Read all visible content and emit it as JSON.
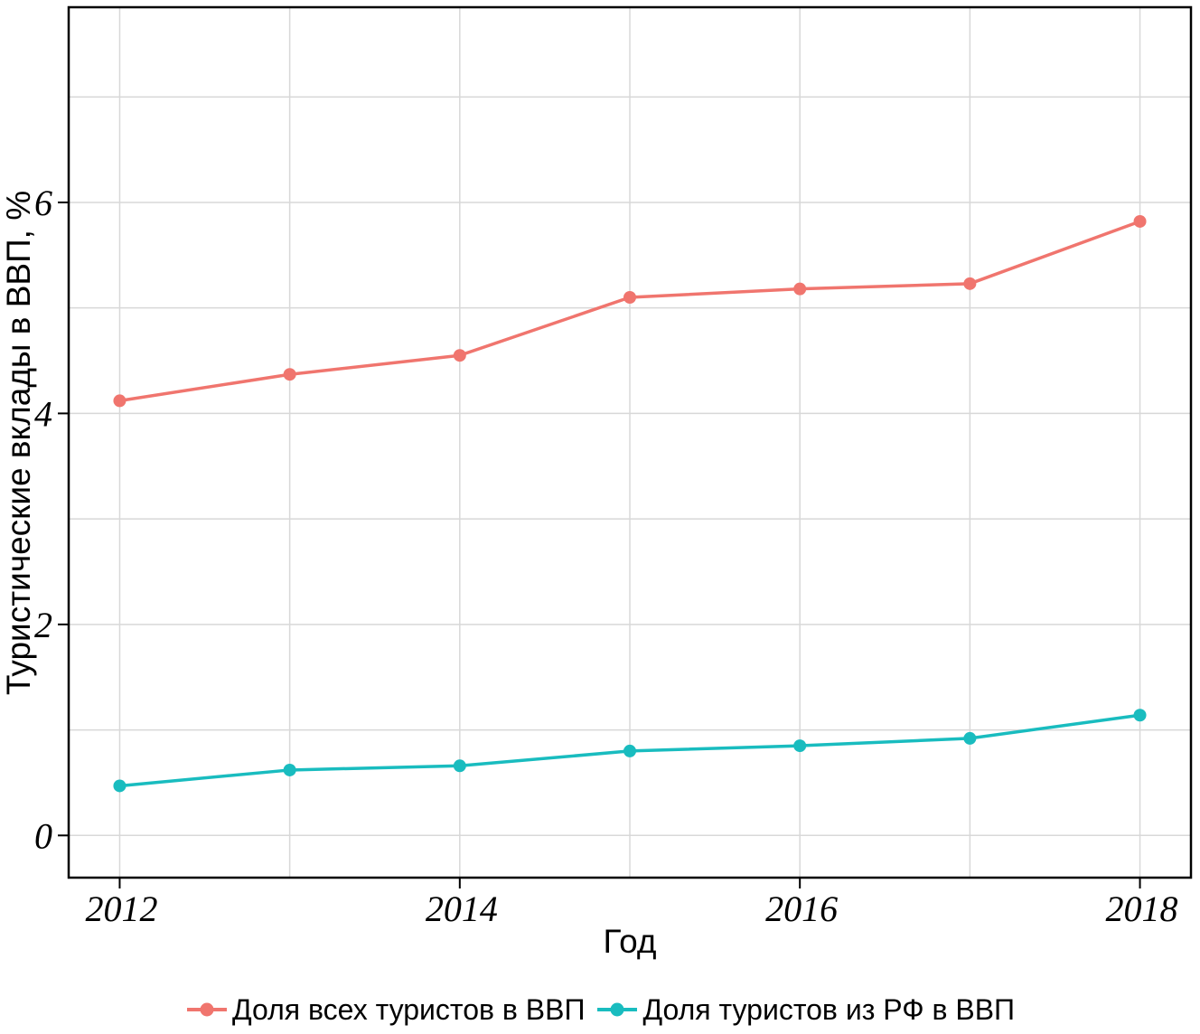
{
  "chart_data": {
    "type": "line",
    "x": [
      2012,
      2013,
      2014,
      2015,
      2016,
      2017,
      2018
    ],
    "series": [
      {
        "name": "Доля всех туристов в ВВП",
        "color": "#F0756E",
        "values": [
          4.12,
          4.37,
          4.55,
          5.1,
          5.18,
          5.23,
          5.82
        ]
      },
      {
        "name": "Доля туристов из РФ в ВВП",
        "color": "#19BCBF",
        "values": [
          0.47,
          0.62,
          0.66,
          0.8,
          0.85,
          0.92,
          1.14
        ]
      }
    ],
    "xlabel": "Год",
    "ylabel": "Туристические вклады в ВВП, %",
    "xlim": [
      2011.7,
      2018.3
    ],
    "ylim": [
      -0.4,
      7.85
    ],
    "x_ticks": [
      2012,
      2014,
      2016,
      2018
    ],
    "x_tick_labels": [
      "2012",
      "2014",
      "2016",
      "2018"
    ],
    "y_ticks": [
      0,
      2,
      4,
      6
    ],
    "y_tick_labels": [
      "0",
      "2",
      "4",
      "6"
    ],
    "x_minor_ticks": [
      2013,
      2015,
      2017
    ],
    "y_minor_ticks": [
      1,
      3,
      5,
      7
    ],
    "grid": true,
    "grid_color": "#D8D8D8",
    "panel_border_color": "#000000",
    "tick_color": "#000000",
    "legend_position": "bottom"
  }
}
